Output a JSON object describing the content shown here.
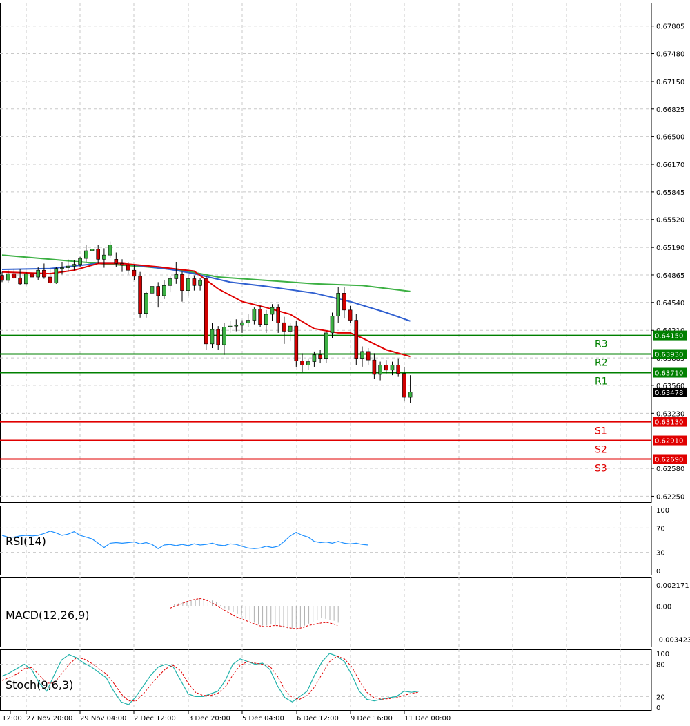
{
  "chart_data": [
    {
      "type": "candlestick",
      "instrument_panel": "price",
      "y_ticks": [
        "0.67805",
        "0.67480",
        "0.67150",
        "0.66825",
        "0.66500",
        "0.66170",
        "0.65845",
        "0.65520",
        "0.65190",
        "0.64865",
        "0.64540",
        "0.64210",
        "0.63885",
        "0.63560",
        "0.63230",
        "0.62580",
        "0.62250"
      ],
      "ylim": [
        0.6218,
        0.6808
      ],
      "current_price": "0.63478",
      "x_ticks": [
        "12:00",
        "27 Nov 20:00",
        "29 Nov 04:00",
        "2 Dec 12:00",
        "3 Dec 20:00",
        "5 Dec 04:00",
        "6 Dec 12:00",
        "9 Dec 16:00",
        "11 Dec 00:00"
      ],
      "levels": [
        {
          "name": "R3",
          "value": "0.64150",
          "color": "#008000"
        },
        {
          "name": "R2",
          "value": "0.63930",
          "color": "#008000"
        },
        {
          "name": "R1",
          "value": "0.63710",
          "color": "#008000"
        },
        {
          "name": "S1",
          "value": "0.63130",
          "color": "#e00000"
        },
        {
          "name": "S2",
          "value": "0.62910",
          "color": "#e00000"
        },
        {
          "name": "S3",
          "value": "0.62690",
          "color": "#e00000"
        }
      ],
      "candles": [
        [
          0.6486,
          0.649,
          0.6478,
          0.648
        ],
        [
          0.648,
          0.6492,
          0.6477,
          0.6488
        ],
        [
          0.6488,
          0.6494,
          0.6482,
          0.6483
        ],
        [
          0.6483,
          0.6493,
          0.6475,
          0.6476
        ],
        [
          0.6476,
          0.649,
          0.6474,
          0.6488
        ],
        [
          0.6488,
          0.6495,
          0.6483,
          0.6484
        ],
        [
          0.6484,
          0.6496,
          0.648,
          0.6492
        ],
        [
          0.6492,
          0.65,
          0.6482,
          0.6484
        ],
        [
          0.6484,
          0.6494,
          0.6476,
          0.6477
        ],
        [
          0.6477,
          0.6496,
          0.6476,
          0.6494
        ],
        [
          0.6494,
          0.6502,
          0.6487,
          0.6495
        ],
        [
          0.6495,
          0.6505,
          0.649,
          0.6497
        ],
        [
          0.6497,
          0.6504,
          0.6492,
          0.6499
        ],
        [
          0.6499,
          0.6508,
          0.6496,
          0.6506
        ],
        [
          0.6506,
          0.6522,
          0.6502,
          0.6515
        ],
        [
          0.6515,
          0.6527,
          0.651,
          0.6517
        ],
        [
          0.6517,
          0.6522,
          0.65,
          0.6505
        ],
        [
          0.6505,
          0.6518,
          0.6495,
          0.651
        ],
        [
          0.651,
          0.6526,
          0.6506,
          0.6522
        ],
        [
          0.6505,
          0.6513,
          0.6496,
          0.65
        ],
        [
          0.65,
          0.6505,
          0.649,
          0.6498
        ],
        [
          0.6498,
          0.6502,
          0.6487,
          0.6492
        ],
        [
          0.6492,
          0.6498,
          0.648,
          0.6485
        ],
        [
          0.6485,
          0.649,
          0.6436,
          0.6441
        ],
        [
          0.6441,
          0.6467,
          0.6436,
          0.6465
        ],
        [
          0.6465,
          0.6476,
          0.6455,
          0.6473
        ],
        [
          0.6473,
          0.6478,
          0.6448,
          0.6462
        ],
        [
          0.6462,
          0.648,
          0.6458,
          0.6474
        ],
        [
          0.6474,
          0.6485,
          0.6466,
          0.6482
        ],
        [
          0.6482,
          0.6502,
          0.6476,
          0.6487
        ],
        [
          0.6487,
          0.649,
          0.6455,
          0.6468
        ],
        [
          0.6468,
          0.6486,
          0.6462,
          0.6482
        ],
        [
          0.6482,
          0.6486,
          0.6468,
          0.6474
        ],
        [
          0.6474,
          0.6483,
          0.6468,
          0.648
        ],
        [
          0.6482,
          0.6485,
          0.6398,
          0.6405
        ],
        [
          0.6405,
          0.643,
          0.64,
          0.6422
        ],
        [
          0.6422,
          0.6426,
          0.6398,
          0.6404
        ],
        [
          0.6404,
          0.643,
          0.6392,
          0.6425
        ],
        [
          0.6425,
          0.6432,
          0.6418,
          0.6426
        ],
        [
          0.6426,
          0.6434,
          0.642,
          0.6427
        ],
        [
          0.6427,
          0.6433,
          0.6418,
          0.643
        ],
        [
          0.643,
          0.644,
          0.6425,
          0.6433
        ],
        [
          0.6433,
          0.6448,
          0.6428,
          0.6446
        ],
        [
          0.6446,
          0.645,
          0.6425,
          0.6428
        ],
        [
          0.6428,
          0.6445,
          0.6418,
          0.644
        ],
        [
          0.644,
          0.6452,
          0.6432,
          0.6448
        ],
        [
          0.6448,
          0.6452,
          0.6418,
          0.643
        ],
        [
          0.643,
          0.6437,
          0.6405,
          0.642
        ],
        [
          0.642,
          0.643,
          0.6408,
          0.6426
        ],
        [
          0.6426,
          0.6432,
          0.6378,
          0.6385
        ],
        [
          0.6385,
          0.6394,
          0.6372,
          0.638
        ],
        [
          0.638,
          0.6388,
          0.6374,
          0.6384
        ],
        [
          0.6384,
          0.6396,
          0.6378,
          0.6392
        ],
        [
          0.6392,
          0.6398,
          0.6382,
          0.6388
        ],
        [
          0.6388,
          0.642,
          0.6382,
          0.6418
        ],
        [
          0.6418,
          0.6442,
          0.6412,
          0.6438
        ],
        [
          0.6438,
          0.6472,
          0.643,
          0.6465
        ],
        [
          0.6465,
          0.6472,
          0.6435,
          0.6445
        ],
        [
          0.6445,
          0.645,
          0.643,
          0.6433
        ],
        [
          0.6433,
          0.644,
          0.638,
          0.6388
        ],
        [
          0.6388,
          0.6402,
          0.6378,
          0.6396
        ],
        [
          0.6396,
          0.64,
          0.638,
          0.6386
        ],
        [
          0.6386,
          0.6394,
          0.6364,
          0.6369
        ],
        [
          0.6369,
          0.6384,
          0.6362,
          0.638
        ],
        [
          0.638,
          0.6386,
          0.637,
          0.6374
        ],
        [
          0.6374,
          0.6384,
          0.6368,
          0.638
        ],
        [
          0.638,
          0.6388,
          0.6366,
          0.637
        ],
        [
          0.637,
          0.6378,
          0.6337,
          0.6342
        ],
        [
          0.6342,
          0.6368,
          0.6335,
          0.6348
        ]
      ],
      "ma_fast": [
        [
          0,
          0.649
        ],
        [
          8,
          0.6488
        ],
        [
          12,
          0.6492
        ],
        [
          16,
          0.65
        ],
        [
          20,
          0.65
        ],
        [
          26,
          0.6496
        ],
        [
          32,
          0.6491
        ],
        [
          36,
          0.647
        ],
        [
          40,
          0.6455
        ],
        [
          44,
          0.6448
        ],
        [
          48,
          0.644
        ],
        [
          52,
          0.6423
        ],
        [
          56,
          0.6418
        ],
        [
          58,
          0.6418
        ],
        [
          60,
          0.6412
        ],
        [
          64,
          0.6398
        ],
        [
          68,
          0.639
        ]
      ],
      "ma_mid": [
        [
          0,
          0.6493
        ],
        [
          8,
          0.6494
        ],
        [
          16,
          0.65
        ],
        [
          20,
          0.65
        ],
        [
          28,
          0.6493
        ],
        [
          32,
          0.6488
        ],
        [
          38,
          0.6478
        ],
        [
          44,
          0.6473
        ],
        [
          52,
          0.6465
        ],
        [
          58,
          0.6455
        ],
        [
          64,
          0.6442
        ],
        [
          68,
          0.6432
        ]
      ],
      "ma_slow": [
        [
          0,
          0.651
        ],
        [
          8,
          0.6505
        ],
        [
          16,
          0.65
        ],
        [
          24,
          0.6496
        ],
        [
          30,
          0.6492
        ],
        [
          36,
          0.6484
        ],
        [
          44,
          0.648
        ],
        [
          52,
          0.6476
        ],
        [
          60,
          0.6474
        ],
        [
          68,
          0.6467
        ]
      ],
      "colors": {
        "bull": "#3cb043",
        "bear": "#d00000",
        "ma_fast": "#e00000",
        "ma_mid": "#3060d0",
        "ma_slow": "#3cb043"
      }
    },
    {
      "type": "line",
      "instrument_panel": "RSI",
      "label": "RSI(14)",
      "y_ticks": [
        "100",
        "70",
        "30",
        "0"
      ],
      "ylim": [
        0,
        100
      ],
      "values": [
        58,
        55,
        55,
        57,
        58,
        57,
        58,
        61,
        65,
        62,
        58,
        60,
        64,
        58,
        55,
        52,
        45,
        38,
        45,
        46,
        45,
        46,
        47,
        44,
        46,
        43,
        36,
        42,
        43,
        41,
        43,
        41,
        44,
        42,
        43,
        45,
        42,
        41,
        44,
        43,
        40,
        37,
        36,
        37,
        40,
        38,
        40,
        48,
        57,
        63,
        58,
        55,
        48,
        46,
        47,
        45,
        48,
        45,
        44,
        45,
        43,
        42
      ]
    },
    {
      "type": "bar",
      "instrument_panel": "MACD",
      "label": "MACD(12,26,9)",
      "y_ticks": [
        "0.002171",
        "0.00",
        "-0.003423"
      ],
      "ylim": [
        -0.0036,
        0.0024
      ],
      "histogram": [
        0.0001,
        0.0002,
        0.0003,
        0.0004,
        0.0005,
        0.0006,
        0.0007,
        0.0008,
        0.0009,
        0.0008,
        0.0006,
        0.0004,
        0.0001,
        -0.0002,
        -0.0004,
        -0.0006,
        -0.0008,
        -0.001,
        -0.0013,
        -0.0015,
        -0.0017,
        -0.0019,
        -0.002,
        -0.002,
        -0.0019,
        -0.002,
        -0.0021,
        -0.0022,
        -0.0023,
        -0.0023,
        -0.0022,
        -0.0022,
        -0.002,
        -0.0018,
        -0.0016,
        -0.0014,
        -0.0012,
        -0.0013,
        -0.0014,
        -0.0015,
        -0.0017
      ],
      "signal": [
        -0.0002,
        0.0,
        0.0002,
        0.0004,
        0.0006,
        0.0007,
        0.0008,
        0.0007,
        0.0005,
        0.0002,
        -0.0001,
        -0.0004,
        -0.0007,
        -0.001,
        -0.0012,
        -0.0014,
        -0.0016,
        -0.0018,
        -0.002,
        -0.0021,
        -0.0021,
        -0.002,
        -0.002,
        -0.0021,
        -0.0022,
        -0.0023,
        -0.0023,
        -0.0022,
        -0.002,
        -0.0019,
        -0.0018,
        -0.0017,
        -0.0017,
        -0.0018,
        -0.002
      ]
    },
    {
      "type": "line",
      "instrument_panel": "Stochastic",
      "label": "Stoch(9,6,3)",
      "y_ticks": [
        "100",
        "80",
        "20",
        "0"
      ],
      "ylim": [
        0,
        100
      ],
      "main": [
        58,
        64,
        72,
        80,
        70,
        45,
        30,
        60,
        88,
        98,
        92,
        82,
        75,
        65,
        55,
        30,
        10,
        5,
        20,
        40,
        60,
        75,
        80,
        75,
        50,
        25,
        20,
        20,
        25,
        30,
        50,
        80,
        90,
        85,
        80,
        82,
        70,
        40,
        18,
        10,
        20,
        30,
        60,
        85,
        100,
        95,
        85,
        60,
        30,
        15,
        12,
        15,
        18,
        20,
        30,
        28,
        30
      ],
      "signal": [
        50,
        55,
        62,
        72,
        74,
        60,
        45,
        45,
        62,
        80,
        92,
        90,
        82,
        72,
        62,
        45,
        25,
        12,
        12,
        25,
        42,
        58,
        72,
        78,
        68,
        45,
        28,
        22,
        22,
        26,
        38,
        60,
        78,
        85,
        82,
        80,
        76,
        58,
        32,
        18,
        15,
        22,
        38,
        62,
        85,
        95,
        90,
        75,
        50,
        28,
        18,
        15,
        16,
        18,
        22,
        26,
        28
      ]
    }
  ]
}
